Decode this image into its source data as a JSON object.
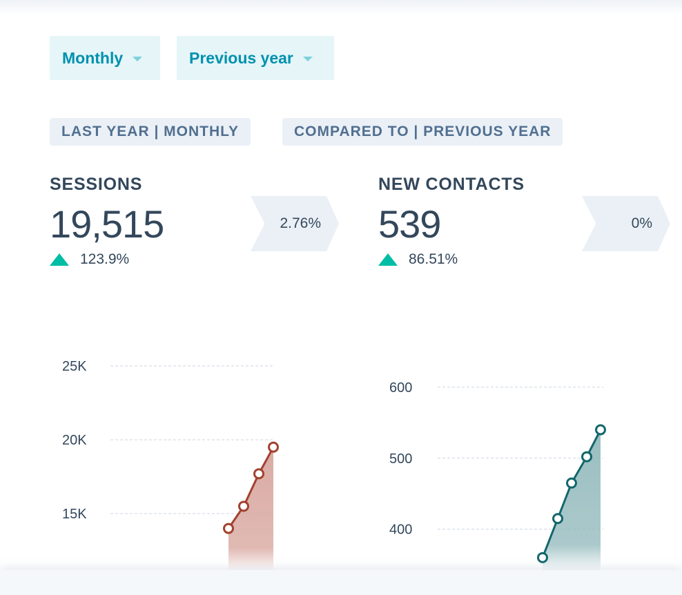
{
  "filters": {
    "frequency": "Monthly",
    "comparison": "Previous year"
  },
  "tags": {
    "range": "LAST YEAR | MONTHLY",
    "compare": "COMPARED TO | PREVIOUS YEAR"
  },
  "kpis": [
    {
      "label": "SESSIONS",
      "value": "19,515",
      "change": "123.9%",
      "change_direction": "up",
      "rate": "2.76%"
    },
    {
      "label": "NEW CONTACTS",
      "value": "539",
      "change": "86.51%",
      "change_direction": "up",
      "rate": "0%"
    }
  ],
  "colors": {
    "accent": "#0091ae",
    "positive": "#00bda5",
    "sessions_line": "#a2412f",
    "contacts_line": "#13676b"
  },
  "chart_data": [
    {
      "type": "area",
      "series": [
        {
          "values": [
            14000,
            15500,
            17700,
            19500
          ]
        }
      ],
      "ylim": [
        13000,
        25000
      ],
      "yticks": [
        {
          "value": 15000,
          "label": "15K"
        },
        {
          "value": 20000,
          "label": "20K"
        },
        {
          "value": 25000,
          "label": "25K"
        }
      ],
      "grid": true
    },
    {
      "type": "area",
      "series": [
        {
          "values": [
            360,
            415,
            465,
            502,
            540
          ]
        }
      ],
      "ylim": [
        320,
        630
      ],
      "yticks": [
        {
          "value": 400,
          "label": "400"
        },
        {
          "value": 500,
          "label": "500"
        },
        {
          "value": 600,
          "label": "600"
        }
      ],
      "grid": true
    }
  ]
}
